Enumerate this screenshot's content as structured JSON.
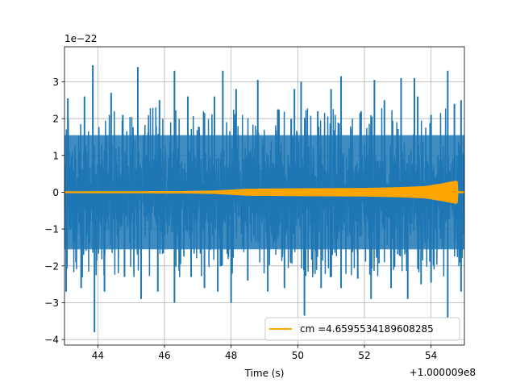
{
  "chart_data": {
    "type": "line",
    "title": "",
    "xlabel": "Time (s)",
    "ylabel": "",
    "x_offset_label": "+1.000009e8",
    "y_scale_label": "1e−22",
    "xlim": [
      43.0,
      55.0
    ],
    "ylim": [
      -4.15,
      3.95
    ],
    "x_ticks": [
      44,
      46,
      48,
      50,
      52,
      54
    ],
    "x_tick_labels": [
      "44",
      "46",
      "48",
      "50",
      "52",
      "54"
    ],
    "y_ticks": [
      -4,
      -3,
      -2,
      -1,
      0,
      1,
      2,
      3
    ],
    "y_tick_labels": [
      "−4",
      "−3",
      "−2",
      "−1",
      "0",
      "1",
      "2",
      "3"
    ],
    "grid": true,
    "legend_position": "lower-right",
    "series": [
      {
        "name": "",
        "color": "#1f77b4",
        "style": "noise",
        "x_range": [
          43.0,
          55.0
        ],
        "core_amplitude": 1.0,
        "upper_spikes": [
          [
            43.1,
            2.55
          ],
          [
            43.6,
            2.6
          ],
          [
            43.85,
            3.45
          ],
          [
            44.4,
            2.7
          ],
          [
            44.75,
            2.1
          ],
          [
            45.2,
            3.4
          ],
          [
            45.85,
            2.5
          ],
          [
            46.3,
            3.3
          ],
          [
            46.7,
            2.6
          ],
          [
            47.2,
            2.15
          ],
          [
            47.5,
            2.6
          ],
          [
            47.75,
            3.3
          ],
          [
            48.15,
            2.8
          ],
          [
            48.8,
            3.05
          ],
          [
            49.4,
            2.25
          ],
          [
            49.9,
            2.8
          ],
          [
            50.1,
            3.0
          ],
          [
            50.6,
            2.2
          ],
          [
            51.0,
            2.8
          ],
          [
            51.3,
            3.15
          ],
          [
            51.9,
            2.2
          ],
          [
            52.3,
            3.05
          ],
          [
            52.6,
            2.5
          ],
          [
            53.1,
            3.1
          ],
          [
            53.5,
            3.1
          ],
          [
            53.6,
            2.6
          ],
          [
            54.0,
            2.1
          ],
          [
            54.5,
            3.3
          ],
          [
            54.7,
            2.4
          ],
          [
            54.9,
            2.5
          ]
        ],
        "lower_spikes": [
          [
            43.05,
            -2.7
          ],
          [
            43.5,
            -2.6
          ],
          [
            43.9,
            -3.8
          ],
          [
            44.2,
            -2.7
          ],
          [
            44.8,
            -2.3
          ],
          [
            45.3,
            -2.9
          ],
          [
            45.8,
            -2.7
          ],
          [
            46.3,
            -3.0
          ],
          [
            46.8,
            -2.3
          ],
          [
            47.2,
            -2.6
          ],
          [
            47.6,
            -2.7
          ],
          [
            48.0,
            -3.0
          ],
          [
            48.5,
            -2.4
          ],
          [
            49.1,
            -2.7
          ],
          [
            49.6,
            -2.6
          ],
          [
            50.2,
            -3.35
          ],
          [
            50.7,
            -2.6
          ],
          [
            51.3,
            -2.6
          ],
          [
            51.8,
            -2.35
          ],
          [
            52.2,
            -2.9
          ],
          [
            52.8,
            -2.6
          ],
          [
            53.3,
            -2.9
          ],
          [
            53.7,
            -2.5
          ],
          [
            54.0,
            -2.45
          ],
          [
            54.5,
            -3.4
          ],
          [
            54.9,
            -2.7
          ]
        ]
      },
      {
        "name": "cm =4.6595534189608285",
        "color": "#ffa500",
        "style": "chirp",
        "x_range": [
          43.0,
          55.0
        ],
        "envelope": [
          [
            43.0,
            0.01
          ],
          [
            46.5,
            0.015
          ],
          [
            47.5,
            0.03
          ],
          [
            48.5,
            0.08
          ],
          [
            50.0,
            0.09
          ],
          [
            52.0,
            0.1
          ],
          [
            53.0,
            0.12
          ],
          [
            53.8,
            0.15
          ],
          [
            54.3,
            0.22
          ],
          [
            54.75,
            0.3
          ],
          [
            54.78,
            -0.3
          ],
          [
            54.8,
            0.01
          ],
          [
            55.0,
            0.01
          ]
        ]
      }
    ]
  }
}
